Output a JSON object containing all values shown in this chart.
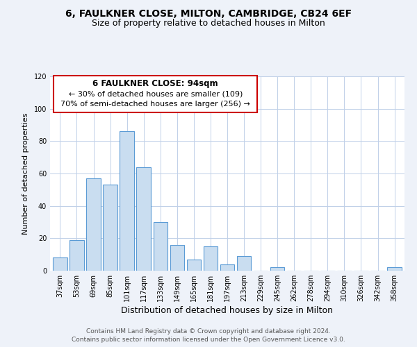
{
  "title": "6, FAULKNER CLOSE, MILTON, CAMBRIDGE, CB24 6EF",
  "subtitle": "Size of property relative to detached houses in Milton",
  "xlabel": "Distribution of detached houses by size in Milton",
  "ylabel": "Number of detached properties",
  "bar_color": "#c9ddf0",
  "bar_edge_color": "#5b9bd5",
  "categories": [
    "37sqm",
    "53sqm",
    "69sqm",
    "85sqm",
    "101sqm",
    "117sqm",
    "133sqm",
    "149sqm",
    "165sqm",
    "181sqm",
    "197sqm",
    "213sqm",
    "229sqm",
    "245sqm",
    "262sqm",
    "278sqm",
    "294sqm",
    "310sqm",
    "326sqm",
    "342sqm",
    "358sqm"
  ],
  "values": [
    8,
    19,
    57,
    53,
    86,
    64,
    30,
    16,
    7,
    15,
    4,
    9,
    0,
    2,
    0,
    0,
    0,
    0,
    0,
    0,
    2
  ],
  "ylim": [
    0,
    120
  ],
  "yticks": [
    0,
    20,
    40,
    60,
    80,
    100,
    120
  ],
  "annotation_box_title": "6 FAULKNER CLOSE: 94sqm",
  "annotation_line1": "← 30% of detached houses are smaller (109)",
  "annotation_line2": "70% of semi-detached houses are larger (256) →",
  "annotation_box_color": "#ffffff",
  "annotation_box_edge_color": "#cc0000",
  "footer1": "Contains HM Land Registry data © Crown copyright and database right 2024.",
  "footer2": "Contains public sector information licensed under the Open Government Licence v3.0.",
  "background_color": "#eef2f9",
  "plot_bg_color": "#ffffff",
  "grid_color": "#c0d0e8",
  "title_fontsize": 10,
  "subtitle_fontsize": 9,
  "xlabel_fontsize": 9,
  "ylabel_fontsize": 8,
  "tick_fontsize": 7,
  "annotation_title_fontsize": 8.5,
  "annotation_line_fontsize": 8,
  "footer_fontsize": 6.5
}
